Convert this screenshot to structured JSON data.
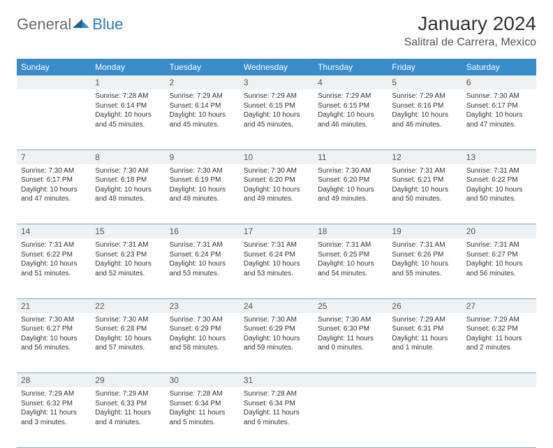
{
  "logo": {
    "general": "General",
    "blue": "Blue"
  },
  "title": "January 2024",
  "location": "Salitral de Carrera, Mexico",
  "colors": {
    "header_bg": "#388cca",
    "header_text": "#ffffff",
    "daynum_bg": "#eef1f3",
    "row_border": "#7aa9c9",
    "logo_gray": "#6b6b6b",
    "logo_blue": "#2f77b5",
    "body_text": "#333333"
  },
  "weekdays": [
    "Sunday",
    "Monday",
    "Tuesday",
    "Wednesday",
    "Thursday",
    "Friday",
    "Saturday"
  ],
  "weeks": [
    {
      "nums": [
        "",
        "1",
        "2",
        "3",
        "4",
        "5",
        "6"
      ],
      "cells": [
        null,
        {
          "sunrise": "Sunrise: 7:28 AM",
          "sunset": "Sunset: 6:14 PM",
          "d1": "Daylight: 10 hours",
          "d2": "and 45 minutes."
        },
        {
          "sunrise": "Sunrise: 7:29 AM",
          "sunset": "Sunset: 6:14 PM",
          "d1": "Daylight: 10 hours",
          "d2": "and 45 minutes."
        },
        {
          "sunrise": "Sunrise: 7:29 AM",
          "sunset": "Sunset: 6:15 PM",
          "d1": "Daylight: 10 hours",
          "d2": "and 45 minutes."
        },
        {
          "sunrise": "Sunrise: 7:29 AM",
          "sunset": "Sunset: 6:15 PM",
          "d1": "Daylight: 10 hours",
          "d2": "and 46 minutes."
        },
        {
          "sunrise": "Sunrise: 7:29 AM",
          "sunset": "Sunset: 6:16 PM",
          "d1": "Daylight: 10 hours",
          "d2": "and 46 minutes."
        },
        {
          "sunrise": "Sunrise: 7:30 AM",
          "sunset": "Sunset: 6:17 PM",
          "d1": "Daylight: 10 hours",
          "d2": "and 47 minutes."
        }
      ]
    },
    {
      "nums": [
        "7",
        "8",
        "9",
        "10",
        "11",
        "12",
        "13"
      ],
      "cells": [
        {
          "sunrise": "Sunrise: 7:30 AM",
          "sunset": "Sunset: 6:17 PM",
          "d1": "Daylight: 10 hours",
          "d2": "and 47 minutes."
        },
        {
          "sunrise": "Sunrise: 7:30 AM",
          "sunset": "Sunset: 6:18 PM",
          "d1": "Daylight: 10 hours",
          "d2": "and 48 minutes."
        },
        {
          "sunrise": "Sunrise: 7:30 AM",
          "sunset": "Sunset: 6:19 PM",
          "d1": "Daylight: 10 hours",
          "d2": "and 48 minutes."
        },
        {
          "sunrise": "Sunrise: 7:30 AM",
          "sunset": "Sunset: 6:20 PM",
          "d1": "Daylight: 10 hours",
          "d2": "and 49 minutes."
        },
        {
          "sunrise": "Sunrise: 7:30 AM",
          "sunset": "Sunset: 6:20 PM",
          "d1": "Daylight: 10 hours",
          "d2": "and 49 minutes."
        },
        {
          "sunrise": "Sunrise: 7:31 AM",
          "sunset": "Sunset: 6:21 PM",
          "d1": "Daylight: 10 hours",
          "d2": "and 50 minutes."
        },
        {
          "sunrise": "Sunrise: 7:31 AM",
          "sunset": "Sunset: 6:22 PM",
          "d1": "Daylight: 10 hours",
          "d2": "and 50 minutes."
        }
      ]
    },
    {
      "nums": [
        "14",
        "15",
        "16",
        "17",
        "18",
        "19",
        "20"
      ],
      "cells": [
        {
          "sunrise": "Sunrise: 7:31 AM",
          "sunset": "Sunset: 6:22 PM",
          "d1": "Daylight: 10 hours",
          "d2": "and 51 minutes."
        },
        {
          "sunrise": "Sunrise: 7:31 AM",
          "sunset": "Sunset: 6:23 PM",
          "d1": "Daylight: 10 hours",
          "d2": "and 52 minutes."
        },
        {
          "sunrise": "Sunrise: 7:31 AM",
          "sunset": "Sunset: 6:24 PM",
          "d1": "Daylight: 10 hours",
          "d2": "and 53 minutes."
        },
        {
          "sunrise": "Sunrise: 7:31 AM",
          "sunset": "Sunset: 6:24 PM",
          "d1": "Daylight: 10 hours",
          "d2": "and 53 minutes."
        },
        {
          "sunrise": "Sunrise: 7:31 AM",
          "sunset": "Sunset: 6:25 PM",
          "d1": "Daylight: 10 hours",
          "d2": "and 54 minutes."
        },
        {
          "sunrise": "Sunrise: 7:31 AM",
          "sunset": "Sunset: 6:26 PM",
          "d1": "Daylight: 10 hours",
          "d2": "and 55 minutes."
        },
        {
          "sunrise": "Sunrise: 7:31 AM",
          "sunset": "Sunset: 6:27 PM",
          "d1": "Daylight: 10 hours",
          "d2": "and 56 minutes."
        }
      ]
    },
    {
      "nums": [
        "21",
        "22",
        "23",
        "24",
        "25",
        "26",
        "27"
      ],
      "cells": [
        {
          "sunrise": "Sunrise: 7:30 AM",
          "sunset": "Sunset: 6:27 PM",
          "d1": "Daylight: 10 hours",
          "d2": "and 56 minutes."
        },
        {
          "sunrise": "Sunrise: 7:30 AM",
          "sunset": "Sunset: 6:28 PM",
          "d1": "Daylight: 10 hours",
          "d2": "and 57 minutes."
        },
        {
          "sunrise": "Sunrise: 7:30 AM",
          "sunset": "Sunset: 6:29 PM",
          "d1": "Daylight: 10 hours",
          "d2": "and 58 minutes."
        },
        {
          "sunrise": "Sunrise: 7:30 AM",
          "sunset": "Sunset: 6:29 PM",
          "d1": "Daylight: 10 hours",
          "d2": "and 59 minutes."
        },
        {
          "sunrise": "Sunrise: 7:30 AM",
          "sunset": "Sunset: 6:30 PM",
          "d1": "Daylight: 11 hours",
          "d2": "and 0 minutes."
        },
        {
          "sunrise": "Sunrise: 7:29 AM",
          "sunset": "Sunset: 6:31 PM",
          "d1": "Daylight: 11 hours",
          "d2": "and 1 minute."
        },
        {
          "sunrise": "Sunrise: 7:29 AM",
          "sunset": "Sunset: 6:32 PM",
          "d1": "Daylight: 11 hours",
          "d2": "and 2 minutes."
        }
      ]
    },
    {
      "nums": [
        "28",
        "29",
        "30",
        "31",
        "",
        "",
        ""
      ],
      "cells": [
        {
          "sunrise": "Sunrise: 7:29 AM",
          "sunset": "Sunset: 6:32 PM",
          "d1": "Daylight: 11 hours",
          "d2": "and 3 minutes."
        },
        {
          "sunrise": "Sunrise: 7:29 AM",
          "sunset": "Sunset: 6:33 PM",
          "d1": "Daylight: 11 hours",
          "d2": "and 4 minutes."
        },
        {
          "sunrise": "Sunrise: 7:28 AM",
          "sunset": "Sunset: 6:34 PM",
          "d1": "Daylight: 11 hours",
          "d2": "and 5 minutes."
        },
        {
          "sunrise": "Sunrise: 7:28 AM",
          "sunset": "Sunset: 6:34 PM",
          "d1": "Daylight: 11 hours",
          "d2": "and 6 minutes."
        },
        null,
        null,
        null
      ]
    }
  ]
}
